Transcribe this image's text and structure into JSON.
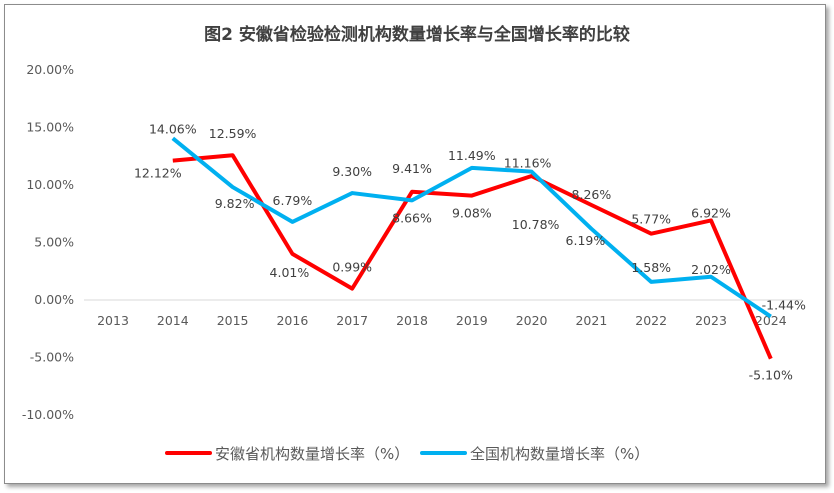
{
  "chart_data": {
    "type": "line",
    "title": "图2 安徽省检验检测机构数量增长率与全国增长率的比较",
    "categories": [
      "2013",
      "2014",
      "2015",
      "2016",
      "2017",
      "2018",
      "2019",
      "2020",
      "2021",
      "2022",
      "2023",
      "2024"
    ],
    "ylim": [
      -10,
      20
    ],
    "yticks": [
      "20.00%",
      "15.00%",
      "10.00%",
      "5.00%",
      "0.00%",
      "-5.00%",
      "-10.00%"
    ],
    "grid": false,
    "legend": "bottom",
    "series": [
      {
        "name": "安徽省机构数量增长率（%）",
        "color": "#ff0000",
        "values": [
          null,
          12.12,
          12.59,
          4.01,
          0.99,
          9.41,
          9.08,
          10.78,
          8.26,
          5.77,
          6.92,
          -5.1
        ],
        "labels": [
          "",
          "12.12%",
          "12.59%",
          "4.01%",
          "0.99%",
          "9.41%",
          "9.08%",
          "10.78%",
          "8.26%",
          "5.77%",
          "6.92%",
          "-5.10%"
        ]
      },
      {
        "name": "全国机构数量增长率（%）",
        "color": "#00b0f0",
        "values": [
          null,
          14.06,
          9.82,
          6.79,
          9.3,
          8.66,
          11.49,
          11.16,
          6.19,
          1.58,
          2.02,
          -1.44
        ],
        "labels": [
          "",
          "14.06%",
          "9.82%",
          "6.79%",
          "9.30%",
          "8.66%",
          "11.49%",
          "11.16%",
          "6.19%",
          "1.58%",
          "2.02%",
          "-1.44%"
        ]
      }
    ]
  }
}
